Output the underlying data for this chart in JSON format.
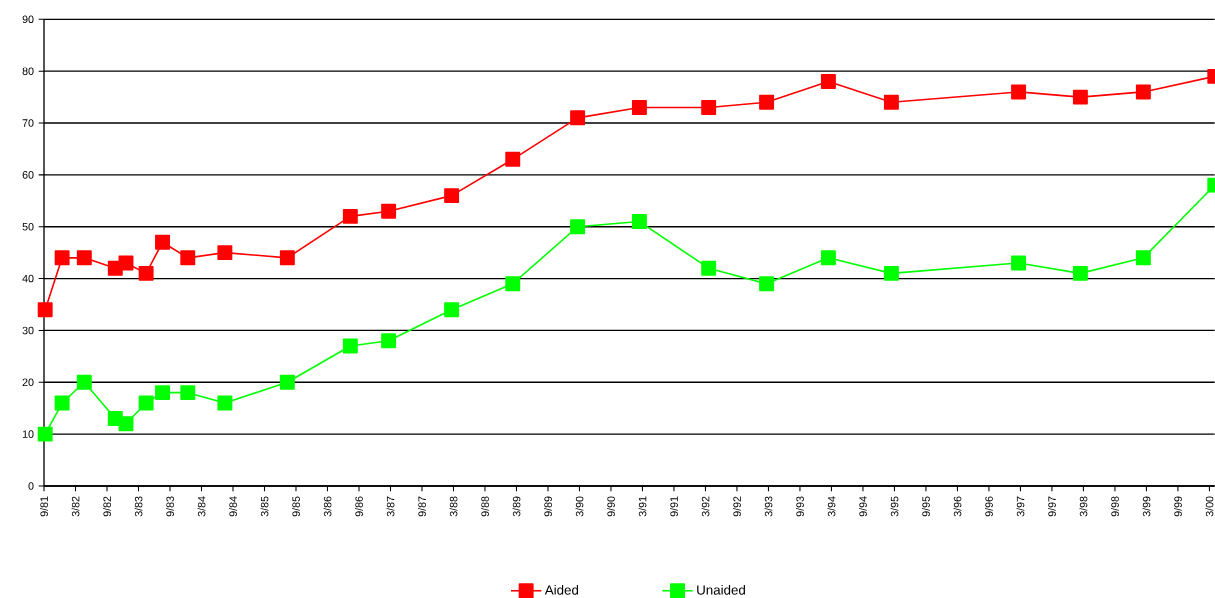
{
  "chart_data": {
    "type": "line",
    "x": [
      "1981-09-08",
      "1981-12-15",
      "1982-04-22",
      "1982-10-19",
      "1982-12-20",
      "1983-04-15",
      "1983-07-19",
      "1983-12-13",
      "1984-07-15",
      "1985-07-12",
      "1986-07-12",
      "1987-02-21",
      "1988-02-21",
      "1989-02-10",
      "1990-02-21",
      "1991-02-14",
      "1992-03-20",
      "1993-02-21",
      "1994-02-14",
      "1995-02-14",
      "1997-02-21",
      "1998-02-14",
      "1999-02-14",
      "2000-04-01"
    ],
    "series": [
      {
        "name": "Aided",
        "color": "#ff0000",
        "values": [
          34,
          44,
          44,
          42,
          43,
          41,
          47,
          44,
          45,
          44,
          52,
          53,
          56,
          63,
          71,
          73,
          73,
          74,
          78,
          74,
          76,
          75,
          76,
          79
        ]
      },
      {
        "name": "Unaided",
        "color": "#00ff00",
        "values": [
          10,
          16,
          20,
          13,
          12,
          16,
          18,
          18,
          16,
          20,
          27,
          28,
          34,
          39,
          50,
          51,
          42,
          39,
          44,
          41,
          43,
          41,
          44,
          58
        ]
      }
    ],
    "xlim": [
      "1981-09",
      "2000-04"
    ],
    "ylim": [
      0,
      90
    ],
    "yticks": [
      0,
      10,
      20,
      30,
      40,
      50,
      60,
      70,
      80,
      90
    ],
    "xticks": [
      {
        "value": "1981-09",
        "label": "9/81"
      },
      {
        "value": "1982-03",
        "label": "3/82"
      },
      {
        "value": "1982-09",
        "label": "9/82"
      },
      {
        "value": "1983-03",
        "label": "3/83"
      },
      {
        "value": "1983-09",
        "label": "9/83"
      },
      {
        "value": "1984-03",
        "label": "3/84"
      },
      {
        "value": "1984-09",
        "label": "9/84"
      },
      {
        "value": "1985-03",
        "label": "3/85"
      },
      {
        "value": "1985-09",
        "label": "9/85"
      },
      {
        "value": "1986-03",
        "label": "3/86"
      },
      {
        "value": "1986-09",
        "label": "9/86"
      },
      {
        "value": "1987-03",
        "label": "3/87"
      },
      {
        "value": "1987-09",
        "label": "9/87"
      },
      {
        "value": "1988-03",
        "label": "3/88"
      },
      {
        "value": "1988-09",
        "label": "9/88"
      },
      {
        "value": "1989-03",
        "label": "3/89"
      },
      {
        "value": "1989-09",
        "label": "9/89"
      },
      {
        "value": "1990-03",
        "label": "3/90"
      },
      {
        "value": "1990-09",
        "label": "9/90"
      },
      {
        "value": "1991-03",
        "label": "3/91"
      },
      {
        "value": "1991-09",
        "label": "9/91"
      },
      {
        "value": "1992-03",
        "label": "3/92"
      },
      {
        "value": "1992-09",
        "label": "9/92"
      },
      {
        "value": "1993-03",
        "label": "3/93"
      },
      {
        "value": "1993-09",
        "label": "9/93"
      },
      {
        "value": "1994-03",
        "label": "3/94"
      },
      {
        "value": "1994-09",
        "label": "9/94"
      },
      {
        "value": "1995-03",
        "label": "3/95"
      },
      {
        "value": "1995-09",
        "label": "9/95"
      },
      {
        "value": "1996-03",
        "label": "3/96"
      },
      {
        "value": "1996-09",
        "label": "9/96"
      },
      {
        "value": "1997-03",
        "label": "3/97"
      },
      {
        "value": "1997-09",
        "label": "9/97"
      },
      {
        "value": "1998-03",
        "label": "3/98"
      },
      {
        "value": "1998-09",
        "label": "9/98"
      },
      {
        "value": "1999-03",
        "label": "3/99"
      },
      {
        "value": "1999-09",
        "label": "9/99"
      },
      {
        "value": "2000-03",
        "label": "3/00"
      }
    ],
    "grid": "y",
    "legend": "bottom",
    "marker": "square",
    "line_style": "solid"
  }
}
